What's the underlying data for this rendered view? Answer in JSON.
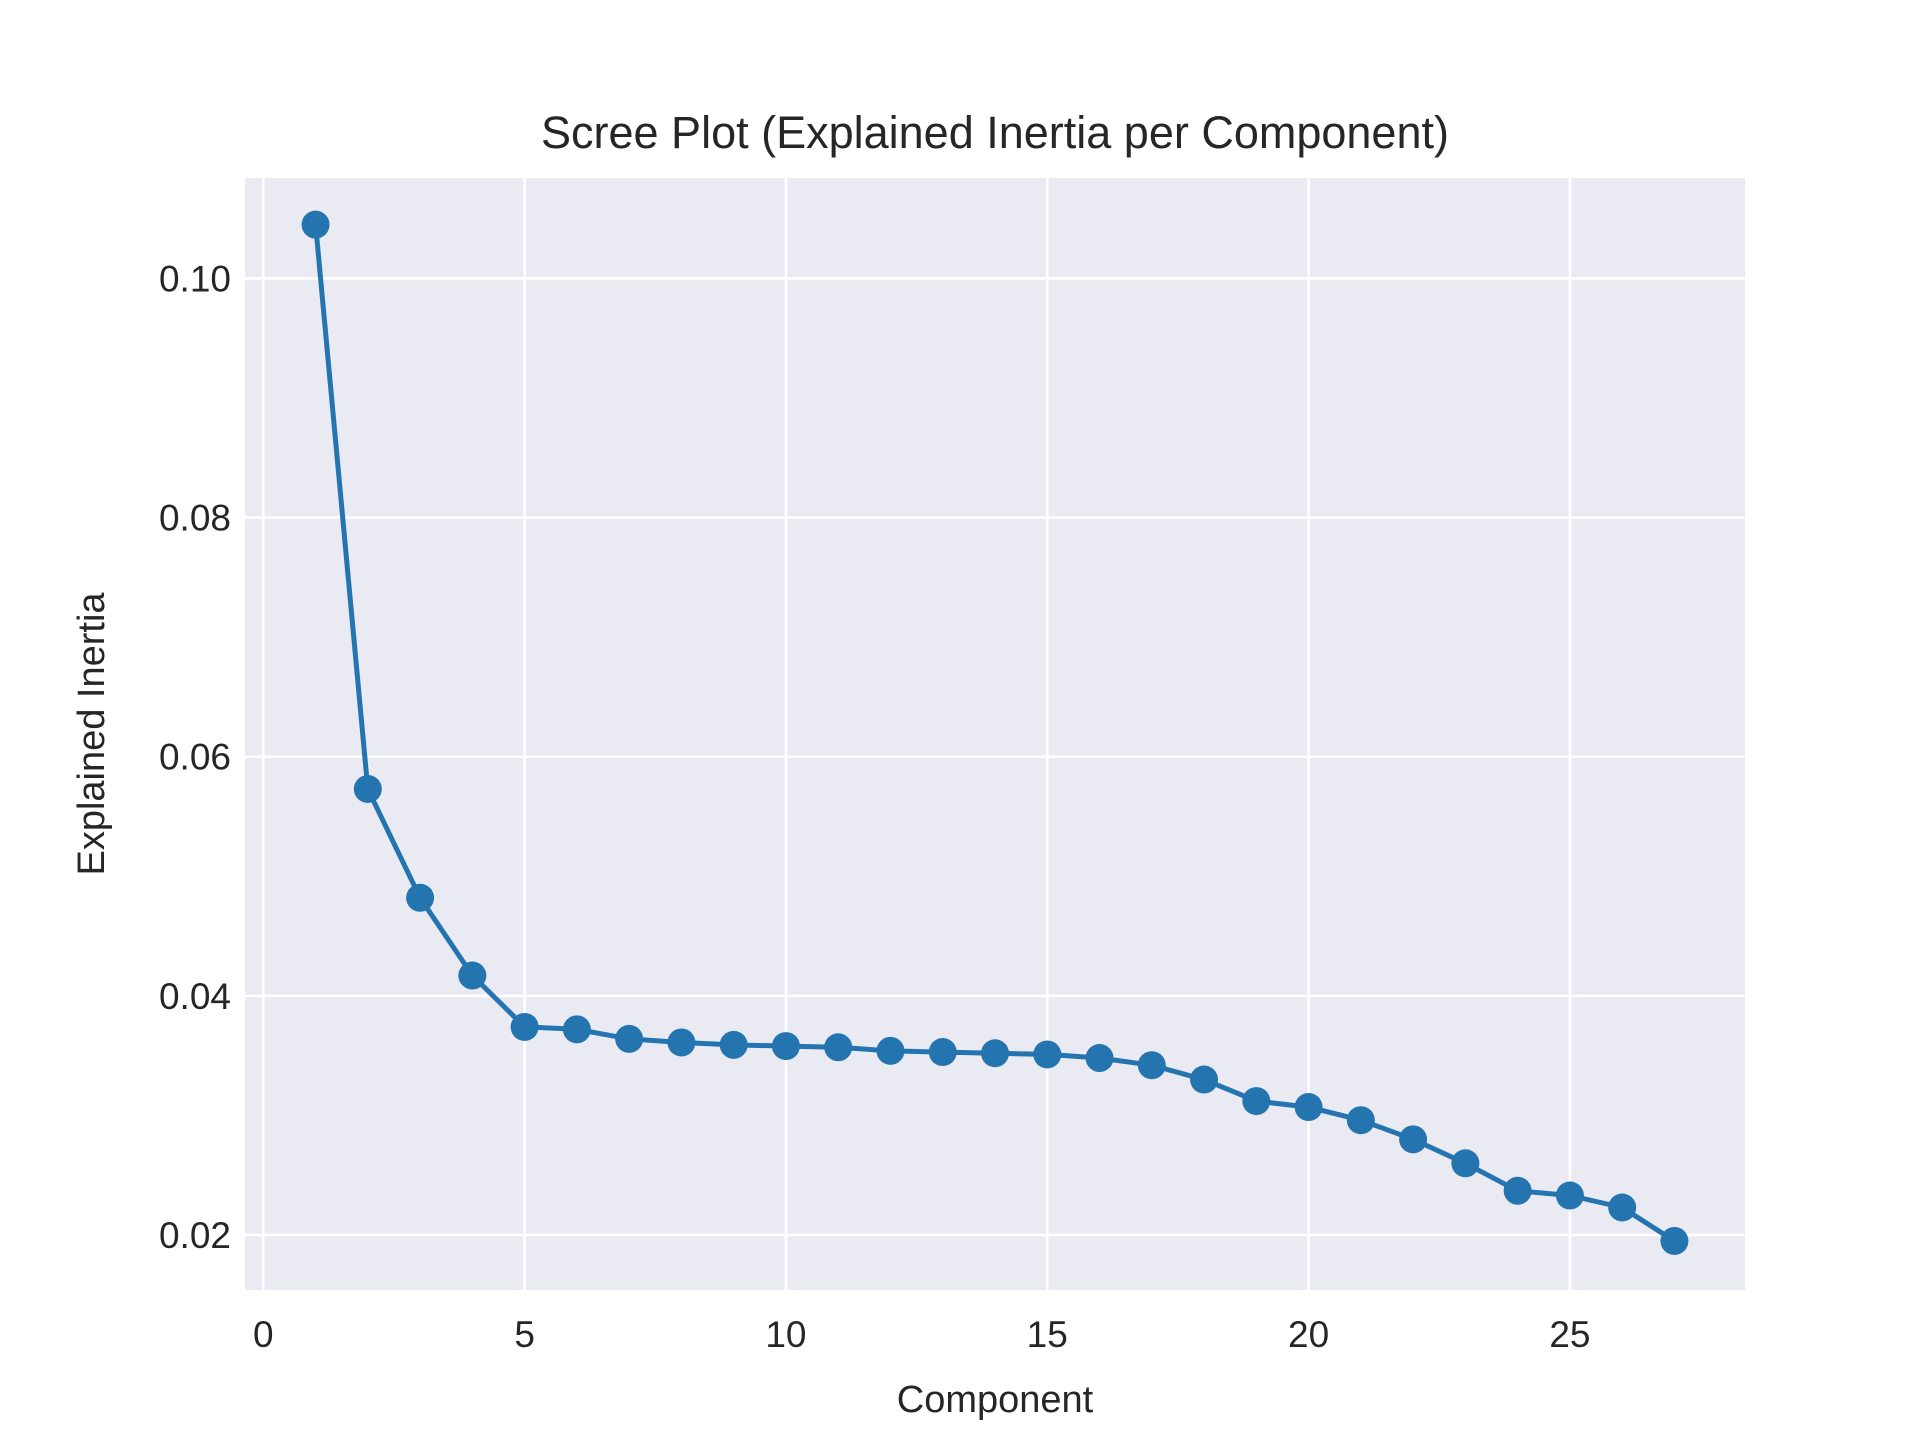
{
  "chart_data": {
    "type": "line",
    "title": "Scree Plot (Explained Inertia per Component)",
    "xlabel": "Component",
    "ylabel": "Explained Inertia",
    "x": [
      1,
      2,
      3,
      4,
      5,
      6,
      7,
      8,
      9,
      10,
      11,
      12,
      13,
      14,
      15,
      16,
      17,
      18,
      19,
      20,
      21,
      22,
      23,
      24,
      25,
      26,
      27
    ],
    "series": [
      {
        "values": [
          0.1045,
          0.0573,
          0.0482,
          0.0417,
          0.0374,
          0.0372,
          0.0364,
          0.0361,
          0.0359,
          0.0358,
          0.0357,
          0.0354,
          0.0353,
          0.0352,
          0.0351,
          0.0348,
          0.0342,
          0.033,
          0.0312,
          0.0307,
          0.0296,
          0.028,
          0.026,
          0.0237,
          0.0233,
          0.0223,
          0.0195
        ],
        "color": "#2474B0"
      }
    ],
    "xlim": [
      -0.35,
      28.35
    ],
    "ylim": [
      0.0154,
      0.1084
    ],
    "xticks": [
      0,
      5,
      10,
      15,
      20,
      25
    ],
    "xtick_labels": [
      "0",
      "5",
      "10",
      "15",
      "20",
      "25"
    ],
    "yticks": [
      0.02,
      0.04,
      0.06,
      0.08,
      0.1
    ],
    "ytick_labels": [
      "0.02",
      "0.04",
      "0.06",
      "0.08",
      "0.10"
    ],
    "grid": true,
    "colors": {
      "plot_background": "#EAEAF2",
      "grid": "#FFFFFF",
      "text": "#262626"
    }
  }
}
